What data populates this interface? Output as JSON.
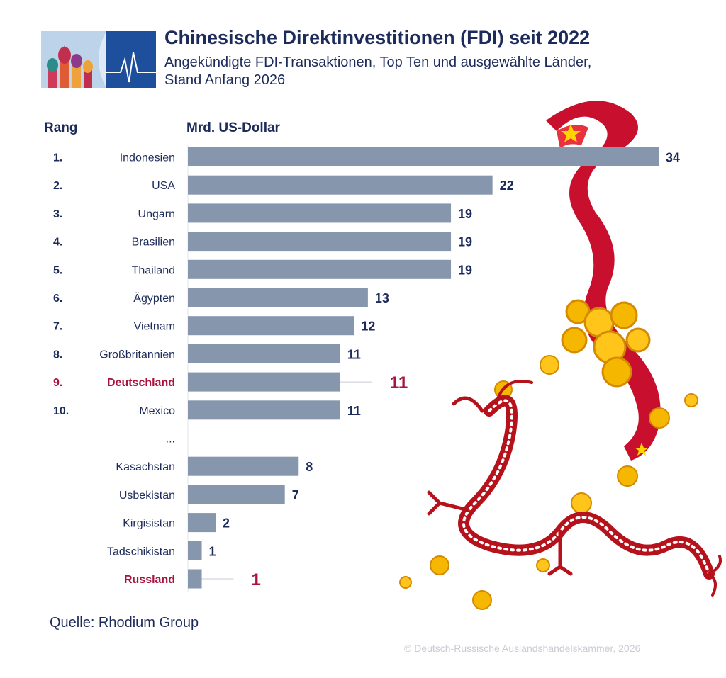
{
  "header": {
    "title": "Chinesische Direktinvestitionen (FDI) seit 2022",
    "subtitle_line1": "Angekündigte FDI-Transaktionen, Top Ten und ausgewählte Länder,",
    "subtitle_line2": "Stand Anfang 2026"
  },
  "columns": {
    "rank": "Rang",
    "unit": "Mrd. US-Dollar"
  },
  "footer": {
    "source": "Quelle: Rhodium Group",
    "copyright": "© Deutsch-Russische Auslandshandelskammer, 2026"
  },
  "colors": {
    "bar": "#8696ad",
    "highlight": "#a8143d",
    "text": "#1d2b5a"
  },
  "chart_data": {
    "type": "bar",
    "orientation": "horizontal",
    "ylabel": "Mrd. US-Dollar",
    "xlim": [
      0,
      34
    ],
    "grid": false,
    "ellipsis": "...",
    "rows": [
      {
        "rank": "1.",
        "label": "Indonesien",
        "value": 34,
        "highlight": false
      },
      {
        "rank": "2.",
        "label": "USA",
        "value": 22,
        "highlight": false
      },
      {
        "rank": "3.",
        "label": "Ungarn",
        "value": 19,
        "highlight": false
      },
      {
        "rank": "4.",
        "label": "Brasilien",
        "value": 19,
        "highlight": false
      },
      {
        "rank": "5.",
        "label": "Thailand",
        "value": 19,
        "highlight": false
      },
      {
        "rank": "6.",
        "label": "Ägypten",
        "value": 13,
        "highlight": false
      },
      {
        "rank": "7.",
        "label": "Vietnam",
        "value": 12,
        "highlight": false
      },
      {
        "rank": "8.",
        "label": "Großbritannien",
        "value": 11,
        "highlight": false
      },
      {
        "rank": "9.",
        "label": "Deutschland",
        "value": 11,
        "highlight": true
      },
      {
        "rank": "10.",
        "label": "Mexico",
        "value": 11,
        "highlight": false
      },
      {
        "rank": "",
        "label": "...",
        "value": null,
        "highlight": false
      },
      {
        "rank": "",
        "label": "Kasachstan",
        "value": 8,
        "highlight": false
      },
      {
        "rank": "",
        "label": "Usbekistan",
        "value": 7,
        "highlight": false
      },
      {
        "rank": "",
        "label": "Kirgisistan",
        "value": 2,
        "highlight": false
      },
      {
        "rank": "",
        "label": "Tadschikistan",
        "value": 1,
        "highlight": false
      },
      {
        "rank": "",
        "label": "Russland",
        "value": 1,
        "highlight": true
      }
    ]
  }
}
